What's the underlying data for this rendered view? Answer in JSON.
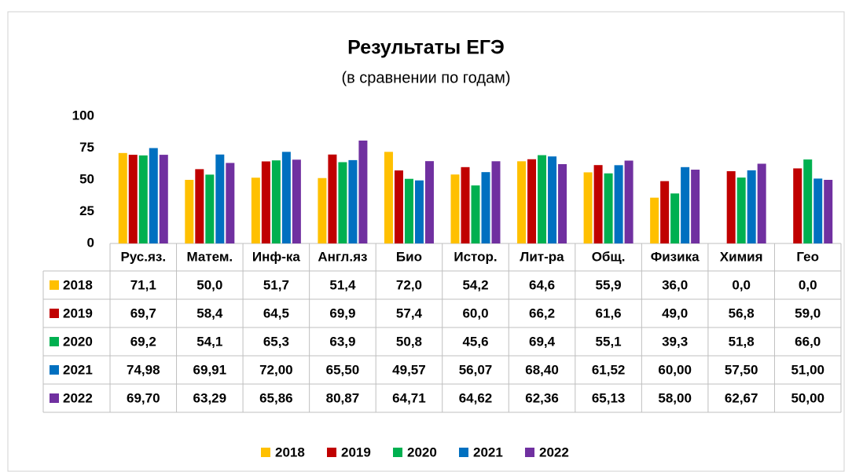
{
  "chart_data": {
    "type": "bar",
    "title": "Результаты ЕГЭ",
    "subtitle": "(в сравнении по годам)",
    "categories": [
      "Рус.яз.",
      "Матем.",
      "Инф-ка",
      "Англ.яз",
      "Био",
      "Истор.",
      "Лит-ра",
      "Общ.",
      "Физика",
      "Химия",
      "Гео"
    ],
    "series": [
      {
        "name": "2018",
        "color": "#ffc000",
        "values": [
          71.1,
          50.0,
          51.7,
          51.4,
          72.0,
          54.2,
          64.6,
          55.9,
          36.0,
          0.0,
          0.0
        ],
        "value_labels": [
          "71,1",
          "50,0",
          "51,7",
          "51,4",
          "72,0",
          "54,2",
          "64,6",
          "55,9",
          "36,0",
          "0,0",
          "0,0"
        ]
      },
      {
        "name": "2019",
        "color": "#c00000",
        "values": [
          69.7,
          58.4,
          64.5,
          69.9,
          57.4,
          60.0,
          66.2,
          61.6,
          49.0,
          56.8,
          59.0
        ],
        "value_labels": [
          "69,7",
          "58,4",
          "64,5",
          "69,9",
          "57,4",
          "60,0",
          "66,2",
          "61,6",
          "49,0",
          "56,8",
          "59,0"
        ]
      },
      {
        "name": "2020",
        "color": "#00b050",
        "values": [
          69.2,
          54.1,
          65.3,
          63.9,
          50.8,
          45.6,
          69.4,
          55.1,
          39.3,
          51.8,
          66.0
        ],
        "value_labels": [
          "69,2",
          "54,1",
          "65,3",
          "63,9",
          "50,8",
          "45,6",
          "69,4",
          "55,1",
          "39,3",
          "51,8",
          "66,0"
        ]
      },
      {
        "name": "2021",
        "color": "#0070c0",
        "values": [
          74.98,
          69.91,
          72.0,
          65.5,
          49.57,
          56.07,
          68.4,
          61.52,
          60.0,
          57.5,
          51.0
        ],
        "value_labels": [
          "74,98",
          "69,91",
          "72,00",
          "65,50",
          "49,57",
          "56,07",
          "68,40",
          "61,52",
          "60,00",
          "57,50",
          "51,00"
        ]
      },
      {
        "name": "2022",
        "color": "#7030a0",
        "values": [
          69.7,
          63.29,
          65.86,
          80.87,
          64.71,
          64.62,
          62.36,
          65.13,
          58.0,
          62.67,
          50.0
        ],
        "value_labels": [
          "69,70",
          "63,29",
          "65,86",
          "80,87",
          "64,71",
          "64,62",
          "62,36",
          "65,13",
          "58,00",
          "62,67",
          "50,00"
        ]
      }
    ],
    "ylim": [
      0,
      100
    ],
    "yticks": [
      0,
      25,
      50,
      75,
      100
    ],
    "grid": false,
    "legend": "bottom"
  }
}
